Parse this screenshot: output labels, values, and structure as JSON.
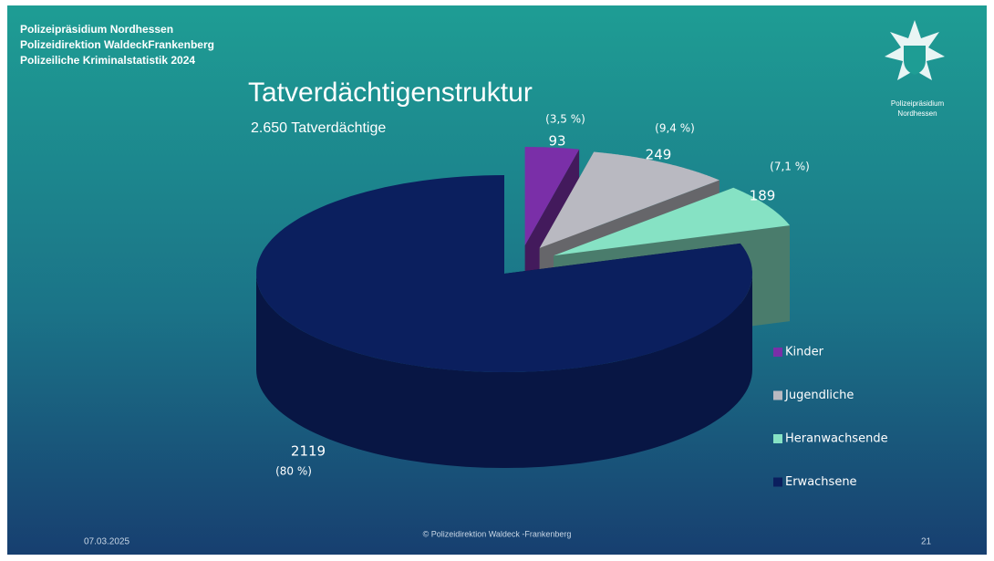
{
  "header": [
    "Polizeipräsidium Nordhessen",
    "Polizeidirektion WaldeckFrankenberg",
    "Polizeiliche Kriminalstatistik 2024"
  ],
  "logo_text": [
    "Polizeipräsidium",
    "Nordhessen"
  ],
  "footer": {
    "date": "07.03.2025",
    "copyright": "© Polizeidirektion Waldeck   -Frankenberg",
    "page": "21"
  },
  "chart_data": {
    "type": "pie3d",
    "title": "Tatverdächtigenstruktur",
    "subtitle": "2.650 Tatverdächtige",
    "categories": [
      "Kinder",
      "Jugendliche",
      "Heranwachsende",
      "Erwachsene"
    ],
    "values": [
      93,
      249,
      189,
      2119
    ],
    "percent_labels": [
      "(3,5 %)",
      "(9,4 %)",
      "(7,1 %)",
      "(80 %)"
    ],
    "colors": [
      "#7a2fa8",
      "#b9b9c1",
      "#86e2c4",
      "#0b1f5e"
    ],
    "legend": "right"
  }
}
